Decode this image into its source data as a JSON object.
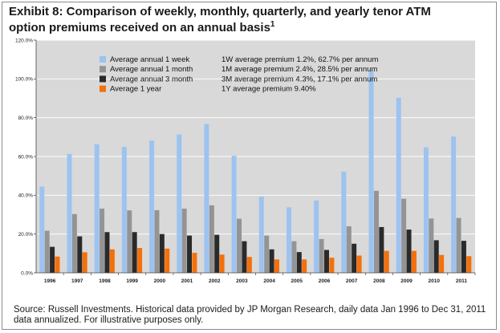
{
  "title_line1": "Exhibit 8: Comparison of weekly, monthly, quarterly, and yearly tenor ATM",
  "title_line2": "option premiums received on an annual basis",
  "title_footnote": "1",
  "source_line1": "Source: Russell Investments. Historical data provided by JP Morgan Research, daily data Jan 1996 to Dec 31, 2011",
  "source_line2": "data annualized. For illustrative purposes only.",
  "chart_data": {
    "type": "bar",
    "categories": [
      "1996",
      "1997",
      "1998",
      "1999",
      "2000",
      "2001",
      "2002",
      "2003",
      "2004",
      "2005",
      "2006",
      "2007",
      "2008",
      "2009",
      "2010",
      "2011"
    ],
    "ylim": [
      0,
      120
    ],
    "yticks": [
      "0.0%",
      "20.0%",
      "40.0%",
      "60.0%",
      "80.0%",
      "100.0%",
      "120.0%"
    ],
    "grid": true,
    "legend_position": "top-left",
    "series": [
      {
        "name": "Average annual 1 week",
        "color": "#9dc3f0",
        "annotation": "1W average premium 1.2%, 62.7% per annum",
        "values": [
          44.5,
          61.3,
          66.3,
          64.9,
          68.2,
          71.3,
          76.8,
          60.3,
          39.3,
          33.8,
          37.3,
          52.2,
          104.0,
          90.3,
          64.7,
          70.3
        ]
      },
      {
        "name": "Average annual 1 month",
        "color": "#949494",
        "annotation": "1M average premium 2.4%, 28.5% per annum",
        "values": [
          21.7,
          30.3,
          33.1,
          32.2,
          32.3,
          33.1,
          34.8,
          27.9,
          19.2,
          16.3,
          17.4,
          24.0,
          42.3,
          38.2,
          28.0,
          28.3
        ]
      },
      {
        "name": "Average annual 3 month",
        "color": "#2a2a2a",
        "annotation": "3M average premium 4.3%, 17.1% per annum",
        "values": [
          13.4,
          18.8,
          21.0,
          21.0,
          20.0,
          19.2,
          19.6,
          16.3,
          12.1,
          10.7,
          11.8,
          15.0,
          23.6,
          22.3,
          16.8,
          16.5
        ]
      },
      {
        "name": "Average 1 year",
        "color": "#f5700a",
        "annotation": "1Y average premium 9.40%",
        "values": [
          8.4,
          10.6,
          12.1,
          12.8,
          12.5,
          10.3,
          9.4,
          8.2,
          6.9,
          6.9,
          7.8,
          8.9,
          11.3,
          11.3,
          9.2,
          8.6
        ]
      }
    ]
  }
}
